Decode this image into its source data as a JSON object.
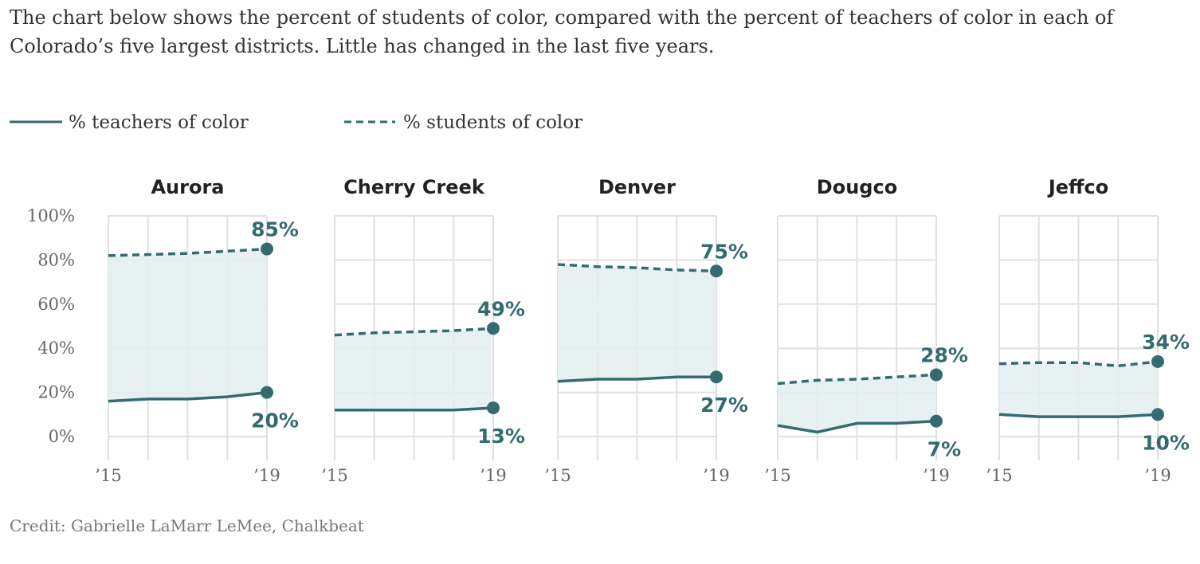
{
  "intro_text": "The chart below shows the percent of students of color, compared with the percent of teachers of color in each of Colorado’s five largest districts. Little has changed in the last five years.",
  "credit": "Credit: Gabrielle LaMarr LeMee, Chalkbeat",
  "colors": {
    "line": "#336b6f",
    "fill": "#e3eff0",
    "grid": "#e0e0e0",
    "label": "#336b6f"
  },
  "chart_data": {
    "type": "line",
    "legend": [
      {
        "key": "teachers",
        "label": "% teachers of color",
        "style": "solid"
      },
      {
        "key": "students",
        "label": "% students of color",
        "style": "dashed"
      }
    ],
    "legend_position": "top-left",
    "x": [
      2015,
      2016,
      2017,
      2018,
      2019
    ],
    "x_tick_labels": [
      "’15",
      "’19"
    ],
    "y_ticks": [
      0,
      20,
      40,
      60,
      80,
      100
    ],
    "y_tick_labels": [
      "0%",
      "20%",
      "40%",
      "60%",
      "80%",
      "100%"
    ],
    "ylim": [
      -11,
      100
    ],
    "grid": true,
    "panels": [
      {
        "title": "Aurora",
        "teachers": [
          16,
          17,
          17,
          18,
          20
        ],
        "students": [
          82,
          82.5,
          83,
          84,
          85
        ],
        "teachers_label": "20%",
        "students_label": "85%"
      },
      {
        "title": "Cherry Creek",
        "teachers": [
          12,
          12,
          12,
          12,
          13
        ],
        "students": [
          46,
          47,
          47.5,
          48,
          49
        ],
        "teachers_label": "13%",
        "students_label": "49%"
      },
      {
        "title": "Denver",
        "teachers": [
          25,
          26,
          26,
          27,
          27
        ],
        "students": [
          78,
          77,
          76.5,
          75.5,
          75
        ],
        "teachers_label": "27%",
        "students_label": "75%"
      },
      {
        "title": "Dougco",
        "teachers": [
          5,
          2,
          6,
          6,
          7
        ],
        "students": [
          24,
          25.5,
          26,
          27,
          28
        ],
        "teachers_label": "7%",
        "students_label": "28%"
      },
      {
        "title": "Jeffco",
        "teachers": [
          10,
          9,
          9,
          9,
          10
        ],
        "students": [
          33,
          33.5,
          33.5,
          32,
          34
        ],
        "teachers_label": "10%",
        "students_label": "34%"
      }
    ]
  }
}
